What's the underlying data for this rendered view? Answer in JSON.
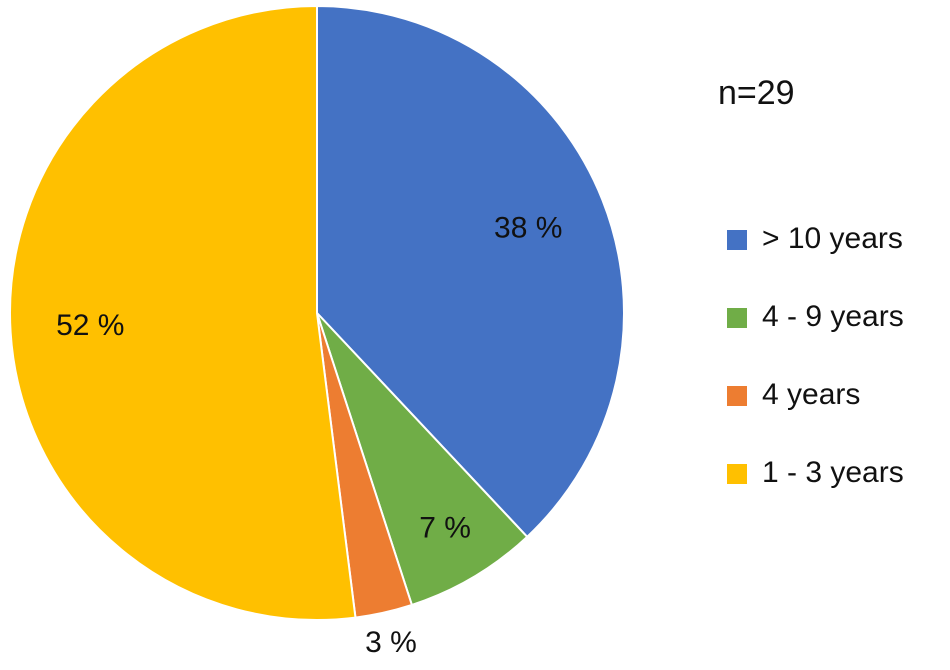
{
  "chart_data": {
    "type": "pie",
    "annotation": "n=29",
    "categories": [
      "> 10 years",
      "4 - 9 years",
      "4 years",
      "1 - 3 years"
    ],
    "values": [
      38,
      7,
      3,
      52
    ],
    "value_labels": [
      "38 %",
      "7 %",
      "3 %",
      "52 %"
    ],
    "colors": [
      "#4472c4",
      "#70ad47",
      "#ed7d31",
      "#ffc000"
    ],
    "legend": "right"
  }
}
